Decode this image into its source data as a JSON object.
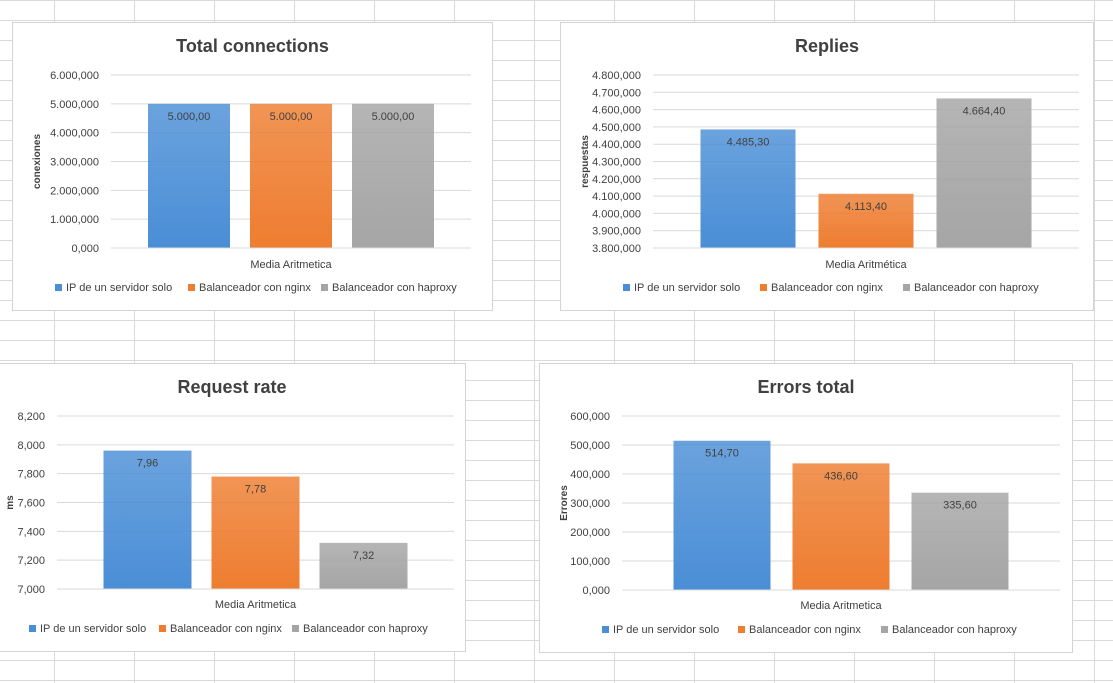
{
  "colors": {
    "series1": "#4a8ed6",
    "series2": "#ee7d30",
    "series3": "#a5a5a5"
  },
  "chart_data": [
    {
      "type": "bar",
      "title": "Total connections",
      "xlabel": "Media Aritmetica",
      "ylabel": "conexiones",
      "ylim": [
        0,
        6000000
      ],
      "yticks": [
        "0,000",
        "1.000,000",
        "2.000,000",
        "3.000,000",
        "4.000,000",
        "5.000,000",
        "6.000,000"
      ],
      "categories": [
        "Media Aritmetica"
      ],
      "grid": true,
      "legend_position": "bottom",
      "series": [
        {
          "name": "IP de un servidor solo",
          "values": [
            5000000
          ],
          "label": "5.000,00"
        },
        {
          "name": "Balanceador con nginx",
          "values": [
            5000000
          ],
          "label": "5.000,00"
        },
        {
          "name": "Balanceador con haproxy",
          "values": [
            5000000
          ],
          "label": "5.000,00"
        }
      ]
    },
    {
      "type": "bar",
      "title": "Replies",
      "xlabel": "Media Aritmética",
      "ylabel": "respuestas",
      "ylim": [
        3800000,
        4800000
      ],
      "yticks": [
        "3.800,000",
        "3.900,000",
        "4.000,000",
        "4.100,000",
        "4.200,000",
        "4.300,000",
        "4.400,000",
        "4.500,000",
        "4.600,000",
        "4.700,000",
        "4.800,000"
      ],
      "categories": [
        "Media Aritmética"
      ],
      "grid": true,
      "legend_position": "bottom",
      "series": [
        {
          "name": "IP de un servidor solo",
          "values": [
            4485300
          ],
          "label": "4.485,30"
        },
        {
          "name": "Balanceador con nginx",
          "values": [
            4113400
          ],
          "label": "4.113,40"
        },
        {
          "name": "Balanceador con haproxy",
          "values": [
            4664400
          ],
          "label": "4.664,40"
        }
      ]
    },
    {
      "type": "bar",
      "title": "Request rate",
      "xlabel": "Media Aritmetica",
      "ylabel": "ms",
      "ylim": [
        7.0,
        8.2
      ],
      "yticks": [
        "7,000",
        "7,200",
        "7,400",
        "7,600",
        "7,800",
        "8,000",
        "8,200"
      ],
      "categories": [
        "Media Aritmetica"
      ],
      "grid": true,
      "legend_position": "bottom",
      "series": [
        {
          "name": "IP de un servidor solo",
          "values": [
            7.96
          ],
          "label": "7,96"
        },
        {
          "name": "Balanceador con nginx",
          "values": [
            7.78
          ],
          "label": "7,78"
        },
        {
          "name": "Balanceador con haproxy",
          "values": [
            7.32
          ],
          "label": "7,32"
        }
      ]
    },
    {
      "type": "bar",
      "title": "Errors total",
      "xlabel": "Media Aritmetica",
      "ylabel": "Errores",
      "ylim": [
        0,
        600000
      ],
      "yticks": [
        "0,000",
        "100,000",
        "200,000",
        "300,000",
        "400,000",
        "500,000",
        "600,000"
      ],
      "categories": [
        "Media Aritmetica"
      ],
      "grid": true,
      "legend_position": "bottom",
      "series": [
        {
          "name": "IP de un servidor solo",
          "values": [
            514700
          ],
          "label": "514,70"
        },
        {
          "name": "Balanceador con nginx",
          "values": [
            436600
          ],
          "label": "436,60"
        },
        {
          "name": "Balanceador con haproxy",
          "values": [
            335600
          ],
          "label": "335,60"
        }
      ]
    }
  ]
}
